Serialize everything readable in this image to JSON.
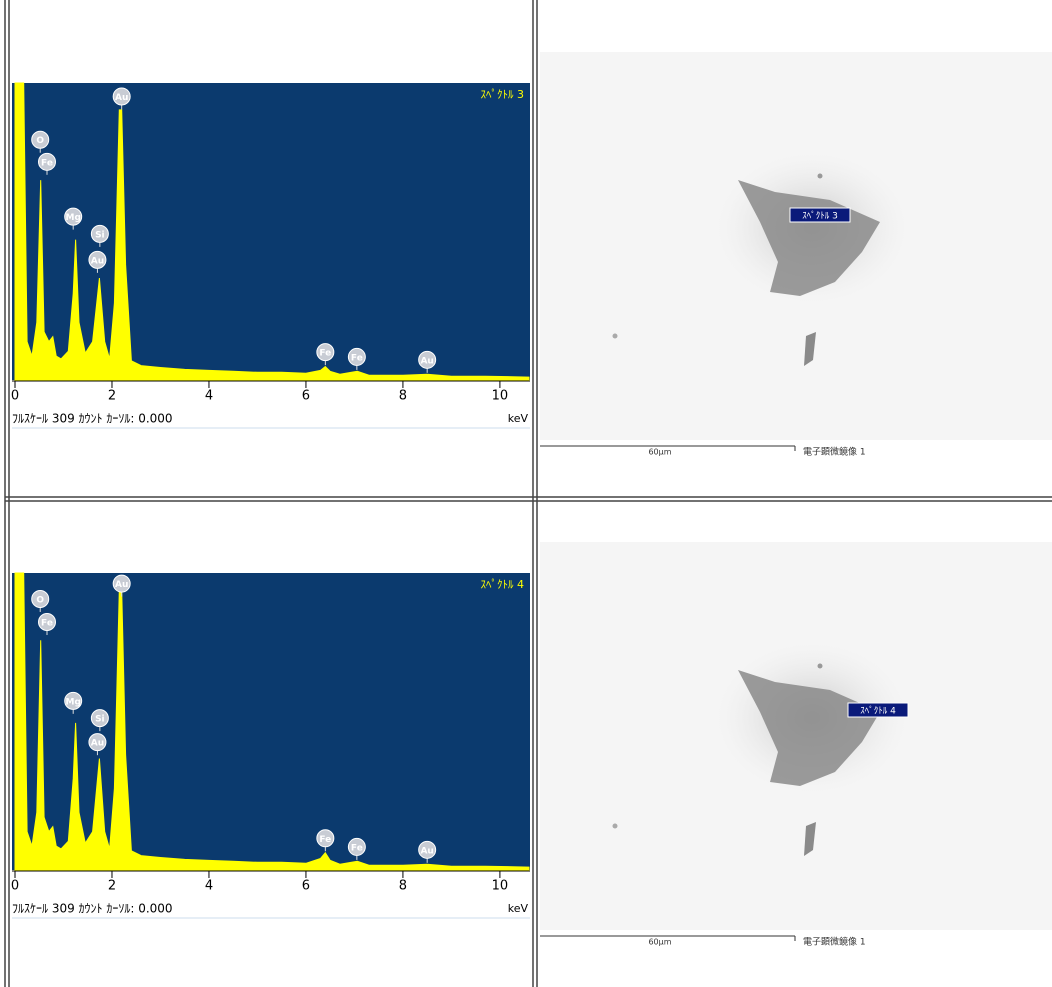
{
  "chart_data": [
    {
      "type": "line",
      "title": "ｽﾍﾟｸﾄﾙ 3",
      "footer": "ﾌﾙｽｹｰﾙ 309 ｶｳﾝﾄ ｶｰｿﾙ: 0.000",
      "x_label": "keV",
      "color": "#ffff00",
      "background": "#0b3a6e",
      "x": [
        0,
        0.1,
        0.18,
        0.25,
        0.35,
        0.45,
        0.53,
        0.6,
        0.7,
        0.78,
        0.85,
        0.95,
        1.1,
        1.2,
        1.25,
        1.32,
        1.45,
        1.6,
        1.74,
        1.85,
        1.95,
        2.05,
        2.15,
        2.2,
        2.28,
        2.4,
        2.6,
        3,
        3.5,
        4,
        4.5,
        5,
        5.5,
        6,
        6.3,
        6.4,
        6.5,
        6.7,
        7.06,
        7.3,
        8,
        8.5,
        9,
        9.7,
        10.6
      ],
      "values": [
        309,
        309,
        309,
        40,
        25,
        60,
        208,
        50,
        40,
        45,
        25,
        22,
        30,
        90,
        146,
        60,
        28,
        40,
        106,
        40,
        22,
        80,
        281,
        281,
        120,
        20,
        15,
        13,
        11,
        10,
        9,
        8,
        8,
        7,
        10,
        14,
        9,
        6,
        9,
        5,
        5,
        6,
        4,
        4,
        3
      ],
      "xlim": [
        0,
        10.6
      ],
      "ylim": [
        0,
        309
      ],
      "xticks": [
        0,
        2,
        4,
        6,
        8,
        10
      ],
      "annotations": [
        {
          "label": "O",
          "x": 0.52,
          "y": 250
        },
        {
          "label": "Fe",
          "x": 0.66,
          "y": 227
        },
        {
          "label": "Mg",
          "x": 1.2,
          "y": 170
        },
        {
          "label": "Si",
          "x": 1.75,
          "y": 152
        },
        {
          "label": "Au",
          "x": 1.7,
          "y": 125
        },
        {
          "label": "Au",
          "x": 2.2,
          "y": 295
        },
        {
          "label": "Fe",
          "x": 6.4,
          "y": 29
        },
        {
          "label": "Fe",
          "x": 7.05,
          "y": 24
        },
        {
          "label": "Au",
          "x": 8.5,
          "y": 21
        }
      ]
    },
    {
      "type": "line",
      "title": "ｽﾍﾟｸﾄﾙ 4",
      "footer": "ﾌﾙｽｹｰﾙ 309 ｶｳﾝﾄ ｶｰｿﾙ: 0.000",
      "x_label": "keV",
      "color": "#ffff00",
      "background": "#0b3a6e",
      "x": [
        0,
        0.1,
        0.18,
        0.25,
        0.35,
        0.45,
        0.53,
        0.6,
        0.7,
        0.78,
        0.85,
        0.95,
        1.1,
        1.2,
        1.25,
        1.32,
        1.45,
        1.6,
        1.74,
        1.85,
        1.95,
        2.05,
        2.15,
        2.2,
        2.28,
        2.4,
        2.6,
        3,
        3.5,
        4,
        4.5,
        5,
        5.5,
        6,
        6.3,
        6.4,
        6.5,
        6.7,
        7.06,
        7.3,
        8,
        8.5,
        9,
        9.7,
        10.6
      ],
      "values": [
        309,
        309,
        309,
        40,
        25,
        60,
        239,
        55,
        40,
        45,
        25,
        22,
        30,
        95,
        153,
        60,
        28,
        40,
        116,
        40,
        22,
        85,
        291,
        291,
        120,
        20,
        15,
        13,
        11,
        10,
        9,
        8,
        8,
        7,
        12,
        18,
        10,
        6,
        9,
        5,
        5,
        6,
        4,
        4,
        3
      ],
      "xlim": [
        0,
        10.6
      ],
      "ylim": [
        0,
        309
      ],
      "xticks": [
        0,
        2,
        4,
        6,
        8,
        10
      ],
      "annotations": [
        {
          "label": "O",
          "x": 0.52,
          "y": 282
        },
        {
          "label": "Fe",
          "x": 0.66,
          "y": 258
        },
        {
          "label": "Mg",
          "x": 1.2,
          "y": 176
        },
        {
          "label": "Si",
          "x": 1.75,
          "y": 158
        },
        {
          "label": "Au",
          "x": 1.7,
          "y": 133
        },
        {
          "label": "Au",
          "x": 2.2,
          "y": 298
        },
        {
          "label": "Fe",
          "x": 6.4,
          "y": 33
        },
        {
          "label": "Fe",
          "x": 7.05,
          "y": 24
        },
        {
          "label": "Au",
          "x": 8.5,
          "y": 21
        }
      ]
    }
  ],
  "images": [
    {
      "label": "ｽﾍﾟｸﾄﾙ 3",
      "scale": "60µm",
      "caption": "電子顕微鏡像 1"
    },
    {
      "label": "ｽﾍﾟｸﾄﾙ 4",
      "scale": "60µm",
      "caption": "電子顕微鏡像 1"
    }
  ]
}
